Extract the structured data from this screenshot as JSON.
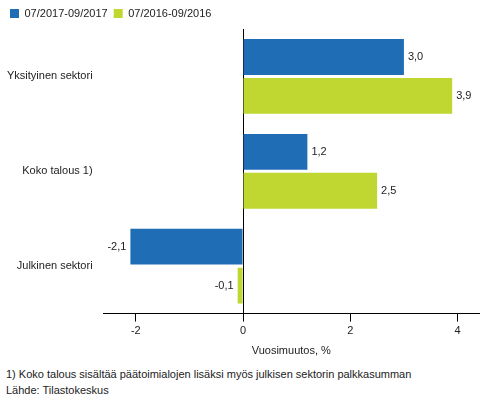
{
  "chart_data": {
    "type": "bar",
    "orientation": "horizontal",
    "categories": [
      "Yksityinen sektori",
      "Koko talous 1)",
      "Julkinen sektori"
    ],
    "series": [
      {
        "name": "07/2017-09/2017",
        "color": "#1f6db5",
        "values": [
          3.0,
          1.2,
          -2.1
        ],
        "value_labels": [
          "3,0",
          "1,2",
          "-2,1"
        ]
      },
      {
        "name": "07/2016-09/2016",
        "color": "#bfd730",
        "values": [
          3.9,
          2.5,
          -0.1
        ],
        "value_labels": [
          "3,9",
          "2,5",
          "-0,1"
        ]
      }
    ],
    "x_label": "Vuosimuutos, %",
    "xlim": [
      -2.6,
      4.4
    ],
    "xticks": [
      -2,
      0,
      2,
      4
    ],
    "grid": false,
    "legend": "top-left",
    "data_labels": true,
    "annotations": [
      "1) Koko talous sisältää päätoimialojen lisäksi myös julkisen sektorin palkkasumman",
      "Lähde: Tilastokeskus"
    ]
  }
}
